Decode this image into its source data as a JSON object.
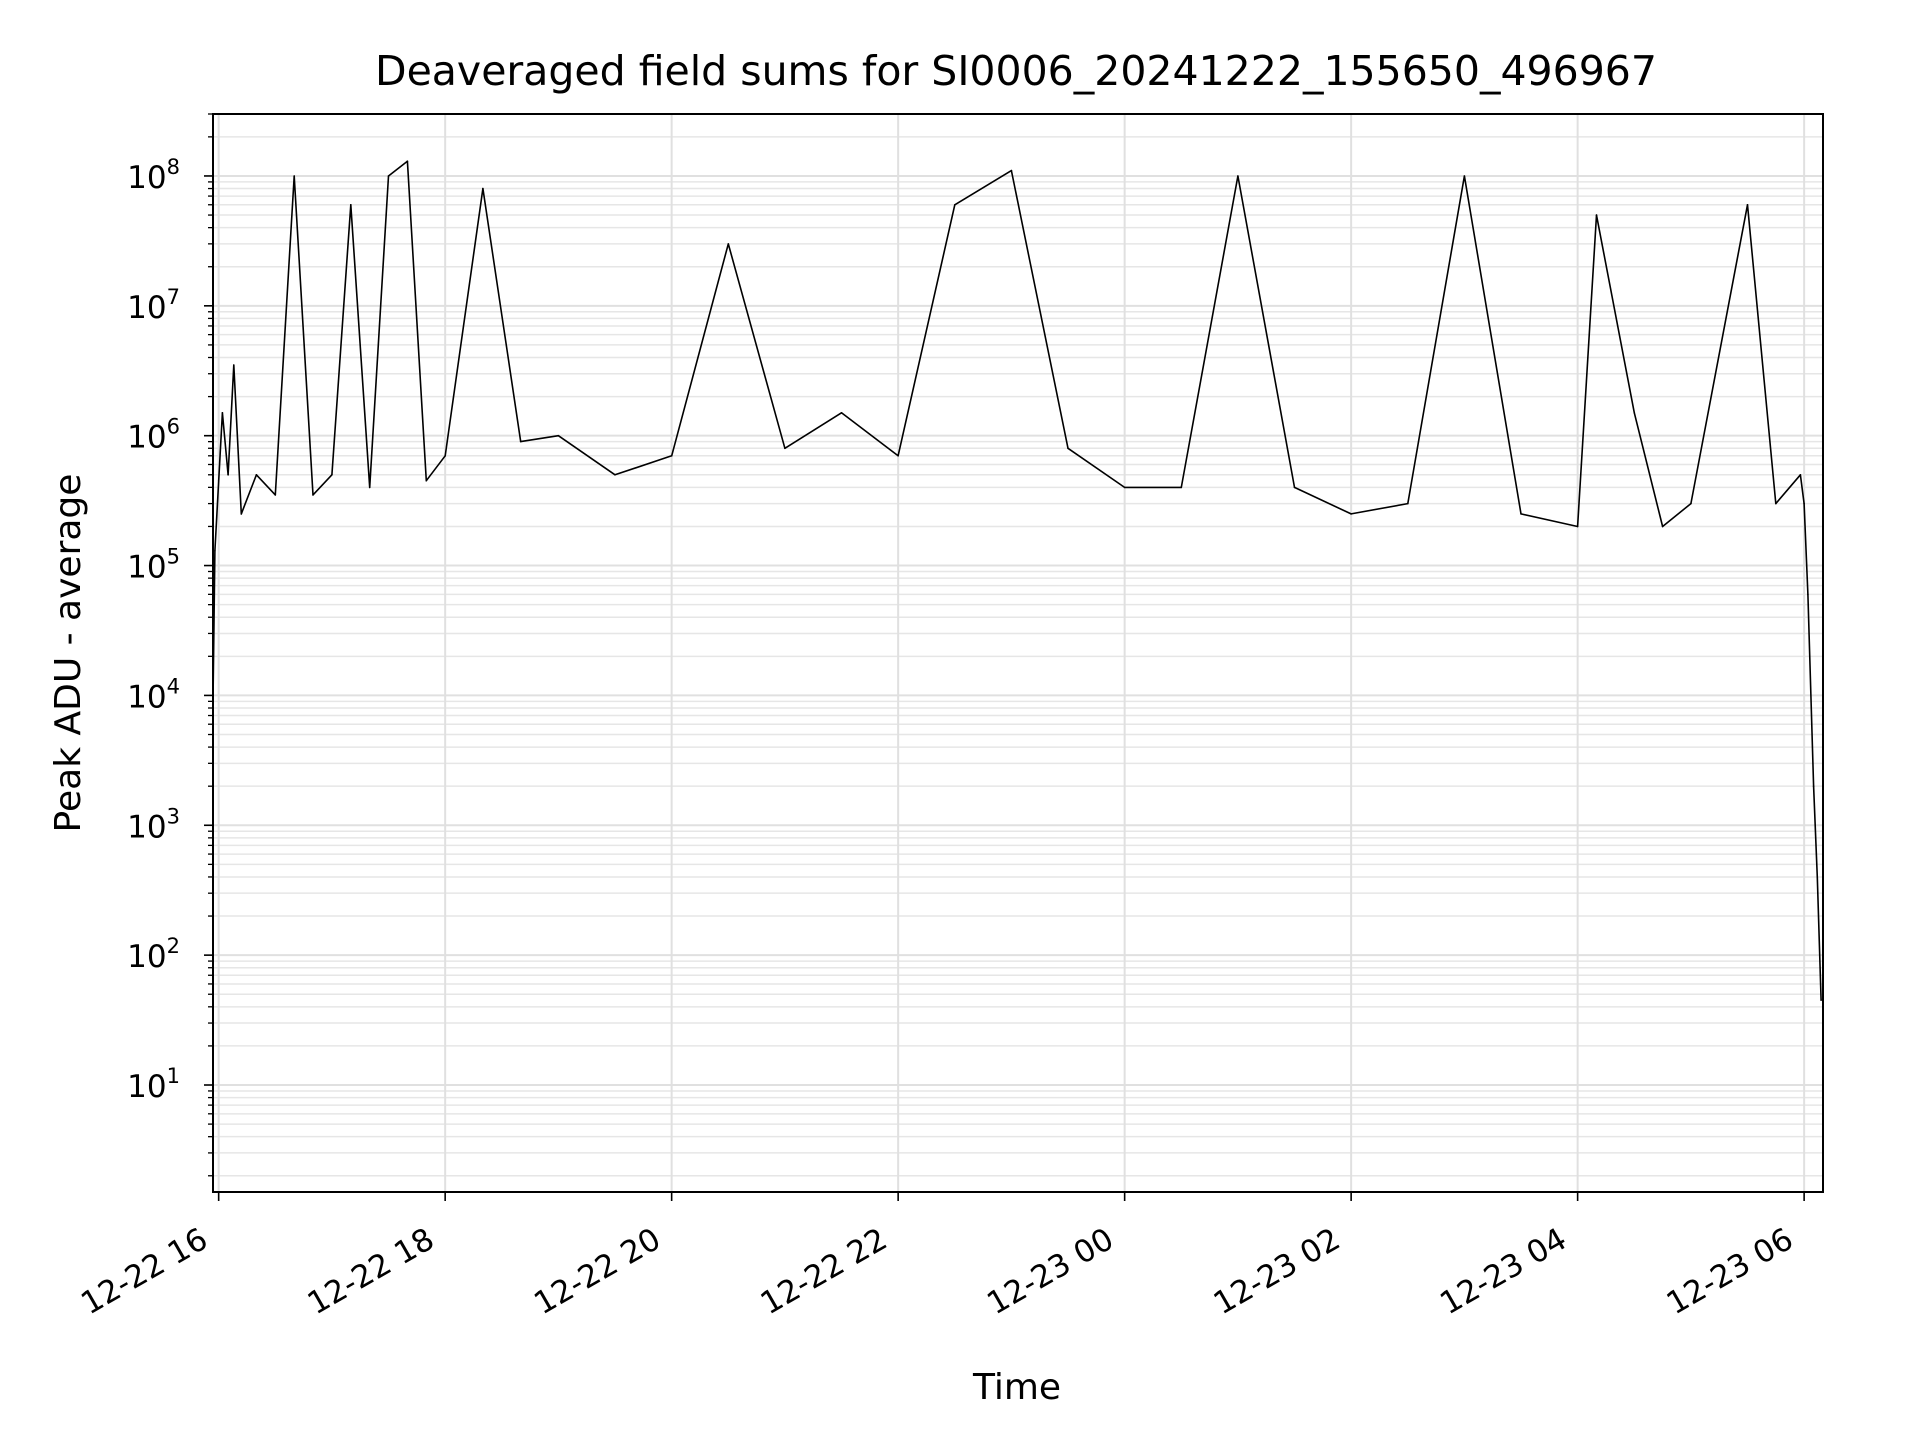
{
  "chart_data": {
    "type": "line",
    "title": "Deaveraged field sums for SI0006_20241222_155650_496967",
    "xlabel": "Time",
    "ylabel": "Peak ADU - average",
    "y_scale": "log",
    "ylim": [
      1.5,
      300000000
    ],
    "xlim": [
      "2024-12-22 15:57",
      "2024-12-23 06:10"
    ],
    "x_tick_labels": [
      "12-22 16",
      "12-22 18",
      "12-22 20",
      "12-22 22",
      "12-23 00",
      "12-23 02",
      "12-23 04",
      "12-23 06"
    ],
    "x_ticks": [
      "2024-12-22 16:00",
      "2024-12-22 18:00",
      "2024-12-22 20:00",
      "2024-12-22 22:00",
      "2024-12-23 00:00",
      "2024-12-23 02:00",
      "2024-12-23 04:00",
      "2024-12-23 06:00"
    ],
    "y_ticks": [
      {
        "base": "10",
        "exp": "1",
        "value": 10
      },
      {
        "base": "10",
        "exp": "2",
        "value": 100
      },
      {
        "base": "10",
        "exp": "3",
        "value": 1000
      },
      {
        "base": "10",
        "exp": "4",
        "value": 10000
      },
      {
        "base": "10",
        "exp": "5",
        "value": 100000
      },
      {
        "base": "10",
        "exp": "6",
        "value": 1000000
      },
      {
        "base": "10",
        "exp": "7",
        "value": 10000000
      },
      {
        "base": "10",
        "exp": "8",
        "value": 100000000
      }
    ],
    "grid": true,
    "series": [
      {
        "color": "#000000",
        "points": [
          [
            "2024-12-22 15:57",
            9000
          ],
          [
            "2024-12-22 15:58",
            130000
          ],
          [
            "2024-12-22 16:00",
            450000
          ],
          [
            "2024-12-22 16:02",
            1500000
          ],
          [
            "2024-12-22 16:05",
            500000
          ],
          [
            "2024-12-22 16:08",
            3500000
          ],
          [
            "2024-12-22 16:12",
            250000
          ],
          [
            "2024-12-22 16:20",
            500000
          ],
          [
            "2024-12-22 16:30",
            350000
          ],
          [
            "2024-12-22 16:40",
            100000000
          ],
          [
            "2024-12-22 16:50",
            350000
          ],
          [
            "2024-12-22 17:00",
            500000
          ],
          [
            "2024-12-22 17:10",
            60000000
          ],
          [
            "2024-12-22 17:20",
            400000
          ],
          [
            "2024-12-22 17:30",
            100000000
          ],
          [
            "2024-12-22 17:40",
            130000000
          ],
          [
            "2024-12-22 17:50",
            450000
          ],
          [
            "2024-12-22 18:00",
            700000
          ],
          [
            "2024-12-22 18:20",
            80000000
          ],
          [
            "2024-12-22 18:40",
            900000
          ],
          [
            "2024-12-22 19:00",
            1000000
          ],
          [
            "2024-12-22 19:30",
            500000
          ],
          [
            "2024-12-22 20:00",
            700000
          ],
          [
            "2024-12-22 20:30",
            30000000
          ],
          [
            "2024-12-22 21:00",
            800000
          ],
          [
            "2024-12-22 21:30",
            1500000
          ],
          [
            "2024-12-22 22:00",
            700000
          ],
          [
            "2024-12-22 22:30",
            60000000
          ],
          [
            "2024-12-22 23:00",
            110000000
          ],
          [
            "2024-12-22 23:30",
            800000
          ],
          [
            "2024-12-23 00:00",
            400000
          ],
          [
            "2024-12-23 00:30",
            400000
          ],
          [
            "2024-12-23 01:00",
            100000000
          ],
          [
            "2024-12-23 01:30",
            400000
          ],
          [
            "2024-12-23 02:00",
            250000
          ],
          [
            "2024-12-23 02:30",
            300000
          ],
          [
            "2024-12-23 03:00",
            100000000
          ],
          [
            "2024-12-23 03:30",
            250000
          ],
          [
            "2024-12-23 04:00",
            200000
          ],
          [
            "2024-12-23 04:10",
            50000000
          ],
          [
            "2024-12-23 04:30",
            1500000
          ],
          [
            "2024-12-23 04:45",
            200000
          ],
          [
            "2024-12-23 05:00",
            300000
          ],
          [
            "2024-12-23 05:30",
            60000000
          ],
          [
            "2024-12-23 05:45",
            300000
          ],
          [
            "2024-12-23 05:58",
            500000
          ],
          [
            "2024-12-23 06:00",
            300000
          ],
          [
            "2024-12-23 06:02",
            60000
          ],
          [
            "2024-12-23 06:05",
            2000
          ],
          [
            "2024-12-23 06:07",
            400
          ],
          [
            "2024-12-23 06:09",
            45
          ]
        ]
      }
    ]
  }
}
